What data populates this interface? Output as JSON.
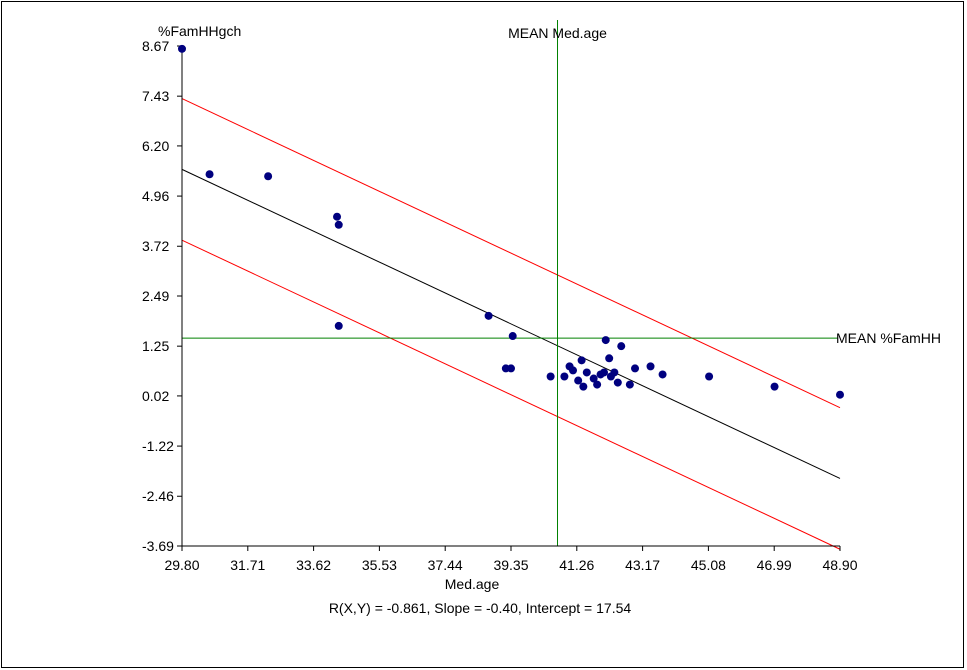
{
  "chart_data": {
    "type": "scatter",
    "title": "",
    "xlabel": "Med.age",
    "ylabel": "%FamHHgch",
    "xlim": [
      29.8,
      48.9
    ],
    "ylim": [
      -3.69,
      8.67
    ],
    "x_ticks": [
      "29.80",
      "31.71",
      "33.62",
      "35.53",
      "37.44",
      "39.35",
      "41.26",
      "43.17",
      "45.08",
      "46.99",
      "48.90"
    ],
    "y_ticks": [
      "8.67",
      "7.43",
      "6.20",
      "4.96",
      "3.72",
      "2.49",
      "1.25",
      "0.02",
      "-1.22",
      "-2.46",
      "-3.69"
    ],
    "grid": false,
    "mean_x": {
      "label": "MEAN Med.age",
      "value": 40.7
    },
    "mean_y": {
      "label": "MEAN %FamHH",
      "value": 1.45
    },
    "stats_text": "R(X,Y) = -0.861, Slope =  -0.40, Intercept =  17.54",
    "regression": {
      "slope": -0.4,
      "intercept": 17.54
    },
    "band_offset": 1.75,
    "colors": {
      "points": "#00007f",
      "fit": "#000000",
      "band": "#ff0000",
      "mean": "#008000"
    },
    "points": [
      {
        "x": 29.8,
        "y": 8.6
      },
      {
        "x": 30.6,
        "y": 5.5
      },
      {
        "x": 32.3,
        "y": 5.45
      },
      {
        "x": 34.3,
        "y": 4.45
      },
      {
        "x": 34.35,
        "y": 4.25
      },
      {
        "x": 34.35,
        "y": 1.75
      },
      {
        "x": 38.7,
        "y": 2.0
      },
      {
        "x": 39.4,
        "y": 1.5
      },
      {
        "x": 39.2,
        "y": 0.7
      },
      {
        "x": 39.35,
        "y": 0.7
      },
      {
        "x": 40.5,
        "y": 0.5
      },
      {
        "x": 40.9,
        "y": 0.5
      },
      {
        "x": 41.05,
        "y": 0.75
      },
      {
        "x": 41.15,
        "y": 0.65
      },
      {
        "x": 41.3,
        "y": 0.4
      },
      {
        "x": 41.4,
        "y": 0.9
      },
      {
        "x": 41.45,
        "y": 0.25
      },
      {
        "x": 41.55,
        "y": 0.6
      },
      {
        "x": 41.75,
        "y": 0.45
      },
      {
        "x": 41.85,
        "y": 0.3
      },
      {
        "x": 41.95,
        "y": 0.55
      },
      {
        "x": 42.05,
        "y": 0.6
      },
      {
        "x": 42.1,
        "y": 1.4
      },
      {
        "x": 42.2,
        "y": 0.95
      },
      {
        "x": 42.25,
        "y": 0.5
      },
      {
        "x": 42.35,
        "y": 0.6
      },
      {
        "x": 42.45,
        "y": 0.35
      },
      {
        "x": 42.55,
        "y": 1.25
      },
      {
        "x": 42.8,
        "y": 0.3
      },
      {
        "x": 42.95,
        "y": 0.7
      },
      {
        "x": 43.4,
        "y": 0.75
      },
      {
        "x": 43.75,
        "y": 0.55
      },
      {
        "x": 45.1,
        "y": 0.5
      },
      {
        "x": 47.0,
        "y": 0.25
      },
      {
        "x": 48.9,
        "y": 0.05
      }
    ]
  }
}
